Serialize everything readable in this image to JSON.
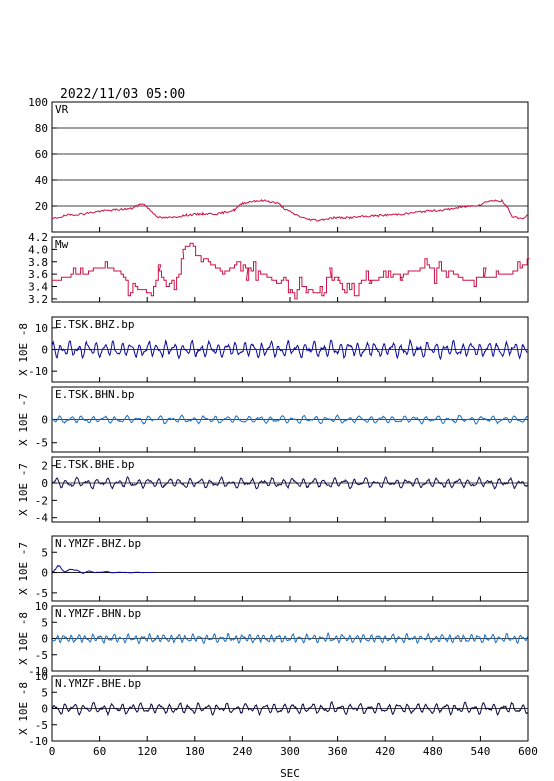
{
  "header": {
    "datetime": "2022/11/03 05:00"
  },
  "chart_data": {
    "type": "line",
    "x": {
      "label": "SEC",
      "range": [
        0,
        600
      ],
      "ticks": [
        0,
        60,
        120,
        180,
        240,
        300,
        360,
        420,
        480,
        540,
        600
      ]
    },
    "panels": [
      {
        "label": "VR",
        "ylabel": "",
        "ylim": [
          0,
          100
        ],
        "yticks": [
          20,
          40,
          60,
          80,
          100
        ],
        "gridlines": [
          20,
          40,
          60,
          80
        ],
        "color": "#cc1144",
        "kind": "vr",
        "points": [
          [
            0,
            10
          ],
          [
            20,
            13
          ],
          [
            40,
            14
          ],
          [
            60,
            16
          ],
          [
            80,
            17
          ],
          [
            100,
            18
          ],
          [
            110,
            21
          ],
          [
            115,
            22
          ],
          [
            125,
            16
          ],
          [
            135,
            11
          ],
          [
            150,
            11
          ],
          [
            170,
            13
          ],
          [
            190,
            14
          ],
          [
            210,
            14
          ],
          [
            230,
            17
          ],
          [
            240,
            22
          ],
          [
            255,
            24
          ],
          [
            270,
            24
          ],
          [
            285,
            22
          ],
          [
            295,
            17
          ],
          [
            305,
            14
          ],
          [
            320,
            10
          ],
          [
            335,
            9
          ],
          [
            355,
            11
          ],
          [
            375,
            11
          ],
          [
            395,
            12
          ],
          [
            420,
            13
          ],
          [
            445,
            14
          ],
          [
            470,
            16
          ],
          [
            495,
            17
          ],
          [
            515,
            19
          ],
          [
            540,
            21
          ],
          [
            550,
            24
          ],
          [
            567,
            24
          ],
          [
            575,
            18
          ],
          [
            580,
            12
          ],
          [
            595,
            10
          ],
          [
            600,
            14
          ]
        ]
      },
      {
        "label": "Mw",
        "ylabel": "",
        "ylim": [
          3.15,
          4.2
        ],
        "yticks": [
          3.2,
          3.4,
          3.6,
          3.8,
          4.0,
          4.2
        ],
        "gridlines": [],
        "color": "#cc1144",
        "kind": "mw",
        "points": [
          [
            0,
            3.5
          ],
          [
            40,
            3.6
          ],
          [
            55,
            3.7
          ],
          [
            75,
            3.7
          ],
          [
            90,
            3.55
          ],
          [
            110,
            3.35
          ],
          [
            125,
            3.3
          ],
          [
            135,
            3.6
          ],
          [
            145,
            3.4
          ],
          [
            160,
            3.6
          ],
          [
            165,
            4.0
          ],
          [
            175,
            4.1
          ],
          [
            185,
            3.9
          ],
          [
            200,
            3.8
          ],
          [
            215,
            3.6
          ],
          [
            235,
            3.8
          ],
          [
            245,
            3.7
          ],
          [
            265,
            3.6
          ],
          [
            280,
            3.5
          ],
          [
            300,
            3.3
          ],
          [
            320,
            3.4
          ],
          [
            340,
            3.2
          ],
          [
            350,
            3.6
          ],
          [
            360,
            3.5
          ],
          [
            375,
            3.45
          ],
          [
            400,
            3.5
          ],
          [
            440,
            3.6
          ],
          [
            470,
            3.7
          ],
          [
            500,
            3.65
          ],
          [
            520,
            3.5
          ],
          [
            545,
            3.55
          ],
          [
            575,
            3.6
          ],
          [
            600,
            3.8
          ]
        ]
      },
      {
        "label": "E.TSK.BHZ.bp",
        "ylabel": "X 10E -8",
        "ylim": [
          -15,
          15
        ],
        "yticks": [
          -10,
          0,
          10
        ],
        "gridlines": [
          0
        ],
        "color": "#0a0a9a",
        "kind": "wave",
        "amp": 2.2,
        "period": 11,
        "seed": 3
      },
      {
        "label": "E.TSK.BHN.bp",
        "ylabel": "X 10E -7",
        "ylim": [
          -7,
          7
        ],
        "yticks": [
          -5,
          0
        ],
        "gridlines": [
          0
        ],
        "color": "#1e6fc0",
        "kind": "wave",
        "amp": 0.5,
        "period": 14,
        "seed": 7
      },
      {
        "label": "E.TSK.BHE.bp",
        "ylabel": "X 10E -7",
        "ylim": [
          -4.5,
          3
        ],
        "yticks": [
          -4,
          -2,
          0,
          2
        ],
        "gridlines": [
          0
        ],
        "color": "#101050",
        "kind": "wave",
        "amp": 0.35,
        "period": 13,
        "seed": 11
      },
      {
        "label": "N.YMZF.BHZ.bp",
        "ylabel": "X 10E -7",
        "ylim": [
          -7,
          9
        ],
        "yticks": [
          -5,
          0,
          5
        ],
        "gridlines": [
          0
        ],
        "color": "#0a0a9a",
        "kind": "decay",
        "amp": 1.2,
        "period": 20,
        "seed": 5,
        "end": 130
      },
      {
        "label": "N.YMZF.BHN.bp",
        "ylabel": "X 10E -8",
        "ylim": [
          -10,
          10
        ],
        "yticks": [
          -10,
          -5,
          0,
          5,
          10
        ],
        "gridlines": [
          0
        ],
        "color": "#1e6fc0",
        "kind": "wave",
        "amp": 0.8,
        "period": 9,
        "seed": 13
      },
      {
        "label": "N.YMZF.BHE.bp",
        "ylabel": "X 10E -8",
        "ylim": [
          -10,
          10
        ],
        "yticks": [
          -10,
          -5,
          0,
          5,
          10
        ],
        "gridlines": [
          0
        ],
        "color": "#0a0a40",
        "kind": "wave",
        "amp": 1.0,
        "period": 12,
        "seed": 17
      }
    ]
  }
}
